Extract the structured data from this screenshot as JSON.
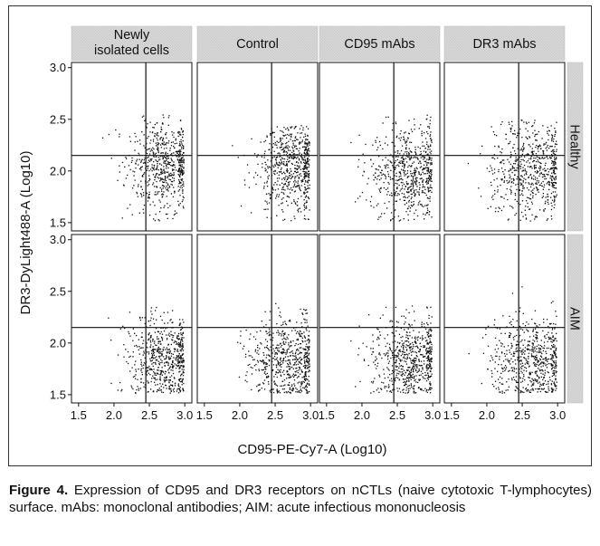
{
  "chart_data": {
    "type": "scatter",
    "layout": "facet-grid",
    "xlabel": "CD95-PE-Cy7-A (Log10)",
    "ylabel": "DR3-DyLight488-A (Log10)",
    "xlim": [
      1.4,
      3.1
    ],
    "ylim": [
      1.42,
      3.05
    ],
    "x_ticks": [
      "1.5",
      "2.0",
      "2.5",
      "3.0"
    ],
    "x_tick_values": [
      1.5,
      2.0,
      2.5,
      3.0
    ],
    "y_ticks": [
      "1.5",
      "2.0",
      "2.5",
      "3.0"
    ],
    "y_tick_values": [
      1.5,
      2.0,
      2.5,
      3.0
    ],
    "columns": [
      "Newly isolated cells",
      "Control",
      "CD95 mAbs",
      "DR3 mAbs"
    ],
    "rows": [
      "Healthy",
      "AIM"
    ],
    "gate_x": 2.45,
    "gate_y": 2.15,
    "grid": false,
    "strip_fill": "#d8d8d8",
    "point_color": "#111111",
    "points_per_panel": 650,
    "panel_distributions": [
      [
        {
          "cx": 2.7,
          "sx": 0.26,
          "cy": 2.05,
          "sy": 0.22,
          "xmin": 1.55,
          "xmax": 2.98,
          "ymin": 1.52,
          "ymax": 2.55
        },
        {
          "cx": 2.72,
          "sx": 0.25,
          "cy": 2.05,
          "sy": 0.22,
          "xmin": 1.55,
          "xmax": 2.98,
          "ymin": 1.52,
          "ymax": 2.45
        },
        {
          "cx": 2.68,
          "sx": 0.28,
          "cy": 2.0,
          "sy": 0.22,
          "xmin": 1.55,
          "xmax": 2.98,
          "ymin": 1.52,
          "ymax": 2.55
        },
        {
          "cx": 2.65,
          "sx": 0.3,
          "cy": 2.02,
          "sy": 0.22,
          "xmin": 1.55,
          "xmax": 2.98,
          "ymin": 1.52,
          "ymax": 2.5
        }
      ],
      [
        {
          "cx": 2.7,
          "sx": 0.27,
          "cy": 1.85,
          "sy": 0.2,
          "xmin": 1.55,
          "xmax": 2.98,
          "ymin": 1.52,
          "ymax": 2.35
        },
        {
          "cx": 2.68,
          "sx": 0.28,
          "cy": 1.85,
          "sy": 0.2,
          "xmin": 1.55,
          "xmax": 2.98,
          "ymin": 1.52,
          "ymax": 2.4
        },
        {
          "cx": 2.68,
          "sx": 0.28,
          "cy": 1.85,
          "sy": 0.2,
          "xmin": 1.55,
          "xmax": 2.98,
          "ymin": 1.52,
          "ymax": 2.85
        },
        {
          "cx": 2.66,
          "sx": 0.3,
          "cy": 1.85,
          "sy": 0.2,
          "xmin": 1.55,
          "xmax": 2.98,
          "ymin": 1.52,
          "ymax": 2.55
        }
      ]
    ]
  },
  "caption": {
    "label": "Figure 4.",
    "text": " Expression of CD95 and DR3 receptors on nCTLs (naive cytotoxic T-lymphocytes) surface. mAbs: monoclonal antibodies; AIM: acute infectious mononucleosis"
  }
}
